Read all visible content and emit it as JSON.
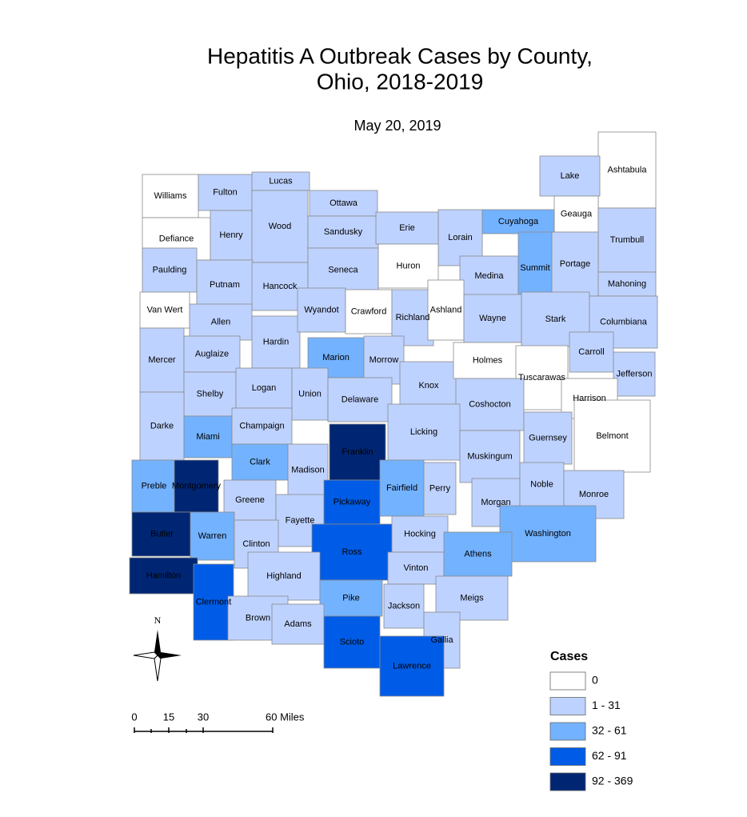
{
  "title": [
    "Hepatitis A Outbreak Cases by County,",
    "Ohio, 2018-2019"
  ],
  "date": "May 20, 2019",
  "north": "N",
  "scale": {
    "labels": [
      "0",
      "15",
      "30",
      "60 Miles"
    ]
  },
  "legend": {
    "title": "Cases",
    "items": [
      {
        "label": "0",
        "color": "#ffffff"
      },
      {
        "label": "1 - 31",
        "color": "#bed2ff"
      },
      {
        "label": "32 - 61",
        "color": "#73b2ff"
      },
      {
        "label": "62 - 91",
        "color": "#005ce6"
      },
      {
        "label": "92 - 369",
        "color": "#002673"
      }
    ]
  },
  "counties": [
    {
      "name": "Ashtabula",
      "color": "#ffffff"
    },
    {
      "name": "Lake",
      "color": "#bed2ff"
    },
    {
      "name": "Geauga",
      "color": "#ffffff"
    },
    {
      "name": "Trumbull",
      "color": "#bed2ff"
    },
    {
      "name": "Williams",
      "color": "#ffffff"
    },
    {
      "name": "Fulton",
      "color": "#bed2ff"
    },
    {
      "name": "Lucas",
      "color": "#bed2ff"
    },
    {
      "name": "Ottawa",
      "color": "#bed2ff"
    },
    {
      "name": "Defiance",
      "color": "#ffffff"
    },
    {
      "name": "Henry",
      "color": "#bed2ff"
    },
    {
      "name": "Wood",
      "color": "#bed2ff"
    },
    {
      "name": "Sandusky",
      "color": "#bed2ff"
    },
    {
      "name": "Erie",
      "color": "#bed2ff"
    },
    {
      "name": "Lorain",
      "color": "#bed2ff"
    },
    {
      "name": "Cuyahoga",
      "color": "#73b2ff"
    },
    {
      "name": "Paulding",
      "color": "#bed2ff"
    },
    {
      "name": "Putnam",
      "color": "#bed2ff"
    },
    {
      "name": "Hancock",
      "color": "#bed2ff"
    },
    {
      "name": "Seneca",
      "color": "#bed2ff"
    },
    {
      "name": "Huron",
      "color": "#ffffff"
    },
    {
      "name": "Medina",
      "color": "#bed2ff"
    },
    {
      "name": "Summit",
      "color": "#73b2ff"
    },
    {
      "name": "Portage",
      "color": "#bed2ff"
    },
    {
      "name": "Mahoning",
      "color": "#bed2ff"
    },
    {
      "name": "Van Wert",
      "color": "#ffffff"
    },
    {
      "name": "Allen",
      "color": "#bed2ff"
    },
    {
      "name": "Hardin",
      "color": "#bed2ff"
    },
    {
      "name": "Wyandot",
      "color": "#bed2ff"
    },
    {
      "name": "Crawford",
      "color": "#ffffff"
    },
    {
      "name": "Richland",
      "color": "#bed2ff"
    },
    {
      "name": "Ashland",
      "color": "#ffffff"
    },
    {
      "name": "Wayne",
      "color": "#bed2ff"
    },
    {
      "name": "Stark",
      "color": "#bed2ff"
    },
    {
      "name": "Columbiana",
      "color": "#bed2ff"
    },
    {
      "name": "Mercer",
      "color": "#bed2ff"
    },
    {
      "name": "Auglaize",
      "color": "#bed2ff"
    },
    {
      "name": "Marion",
      "color": "#73b2ff"
    },
    {
      "name": "Morrow",
      "color": "#bed2ff"
    },
    {
      "name": "Knox",
      "color": "#bed2ff"
    },
    {
      "name": "Holmes",
      "color": "#ffffff"
    },
    {
      "name": "Tuscarawas",
      "color": "#ffffff"
    },
    {
      "name": "Carroll",
      "color": "#bed2ff"
    },
    {
      "name": "Jefferson",
      "color": "#bed2ff"
    },
    {
      "name": "Harrison",
      "color": "#ffffff"
    },
    {
      "name": "Shelby",
      "color": "#bed2ff"
    },
    {
      "name": "Logan",
      "color": "#bed2ff"
    },
    {
      "name": "Union",
      "color": "#bed2ff"
    },
    {
      "name": "Delaware",
      "color": "#bed2ff"
    },
    {
      "name": "Coshocton",
      "color": "#bed2ff"
    },
    {
      "name": "Darke",
      "color": "#bed2ff"
    },
    {
      "name": "Miami",
      "color": "#73b2ff"
    },
    {
      "name": "Champaign",
      "color": "#bed2ff"
    },
    {
      "name": "Licking",
      "color": "#bed2ff"
    },
    {
      "name": "Guernsey",
      "color": "#bed2ff"
    },
    {
      "name": "Belmont",
      "color": "#ffffff"
    },
    {
      "name": "Franklin",
      "color": "#002673"
    },
    {
      "name": "Clark",
      "color": "#73b2ff"
    },
    {
      "name": "Madison",
      "color": "#bed2ff"
    },
    {
      "name": "Muskingum",
      "color": "#bed2ff"
    },
    {
      "name": "Preble",
      "color": "#73b2ff"
    },
    {
      "name": "Montgomery",
      "color": "#002673"
    },
    {
      "name": "Greene",
      "color": "#bed2ff"
    },
    {
      "name": "Fayette",
      "color": "#bed2ff"
    },
    {
      "name": "Pickaway",
      "color": "#005ce6"
    },
    {
      "name": "Fairfield",
      "color": "#73b2ff"
    },
    {
      "name": "Perry",
      "color": "#bed2ff"
    },
    {
      "name": "Morgan",
      "color": "#bed2ff"
    },
    {
      "name": "Noble",
      "color": "#bed2ff"
    },
    {
      "name": "Monroe",
      "color": "#bed2ff"
    },
    {
      "name": "Butler",
      "color": "#002673"
    },
    {
      "name": "Warren",
      "color": "#73b2ff"
    },
    {
      "name": "Clinton",
      "color": "#bed2ff"
    },
    {
      "name": "Ross",
      "color": "#005ce6"
    },
    {
      "name": "Hocking",
      "color": "#bed2ff"
    },
    {
      "name": "Washington",
      "color": "#73b2ff"
    },
    {
      "name": "Hamilton",
      "color": "#002673"
    },
    {
      "name": "Clermont",
      "color": "#005ce6"
    },
    {
      "name": "Highland",
      "color": "#bed2ff"
    },
    {
      "name": "Vinton",
      "color": "#bed2ff"
    },
    {
      "name": "Athens",
      "color": "#73b2ff"
    },
    {
      "name": "Pike",
      "color": "#73b2ff"
    },
    {
      "name": "Brown",
      "color": "#bed2ff"
    },
    {
      "name": "Adams",
      "color": "#bed2ff"
    },
    {
      "name": "Jackson",
      "color": "#bed2ff"
    },
    {
      "name": "Meigs",
      "color": "#bed2ff"
    },
    {
      "name": "Scioto",
      "color": "#005ce6"
    },
    {
      "name": "Gallia",
      "color": "#bed2ff"
    },
    {
      "name": "Lawrence",
      "color": "#005ce6"
    }
  ]
}
